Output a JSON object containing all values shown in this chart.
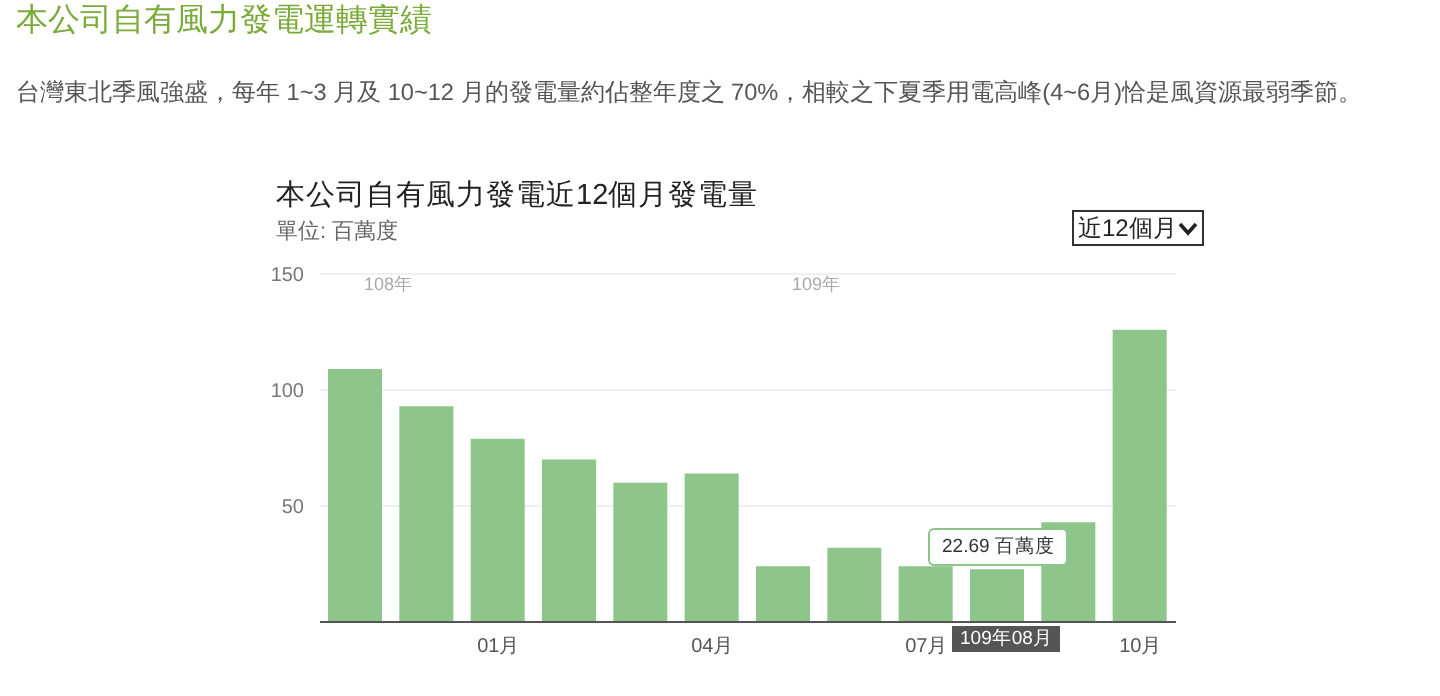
{
  "chart_data": {
    "type": "bar",
    "title": "本公司自有風力發電運轉實績",
    "subtitle": "台灣東北季風強盛，每年 1~3 月及 10~12 月的發電量約佔整年度之 70%，相較之下夏季用電高峰(4~6月)恰是風資源最弱季節。",
    "ylabel": "單位: 百萬度",
    "annotations": [
      "本公司自有風力發電近12個月發電量",
      "近12個月",
      "108年",
      "109年",
      "22.69 百萬度",
      "109年08月"
    ],
    "categories": [
      null,
      null,
      "01月",
      null,
      null,
      "04月",
      null,
      null,
      "07月",
      null,
      null,
      "10月"
    ],
    "values": [
      109,
      93,
      79,
      70,
      60,
      64,
      24,
      32,
      24,
      22.69,
      43,
      126
    ],
    "color": "#8dc58a",
    "ylim": [
      0,
      150
    ],
    "yticks": [
      50,
      100,
      150
    ],
    "grid": "y"
  }
}
